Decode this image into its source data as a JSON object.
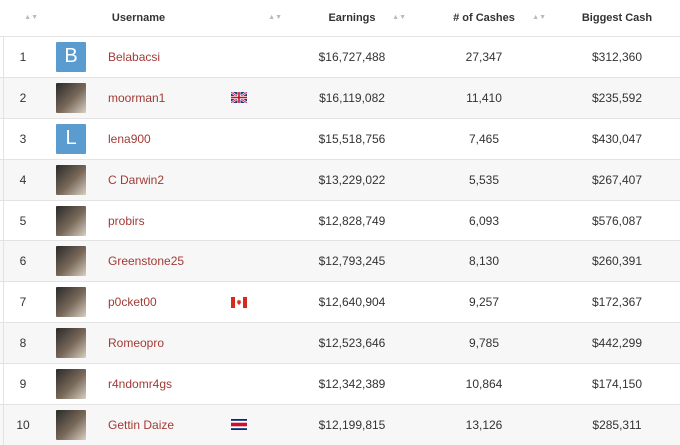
{
  "header": {
    "username": "Username",
    "earnings": "Earnings",
    "cashes": "# of Cashes",
    "biggest": "Biggest Cash",
    "sort_glyph": "▲▼"
  },
  "rows": [
    {
      "rank": "1",
      "name": "Belabacsi",
      "avatar": "letter",
      "letter": "B",
      "flag": "",
      "earnings": "$16,727,488",
      "cashes": "27,347",
      "biggest": "$312,360"
    },
    {
      "rank": "2",
      "name": "moorman1",
      "avatar": "photo",
      "flag": "uk",
      "earnings": "$16,119,082",
      "cashes": "11,410",
      "biggest": "$235,592"
    },
    {
      "rank": "3",
      "name": "lena900",
      "avatar": "letter",
      "letter": "L",
      "flag": "",
      "earnings": "$15,518,756",
      "cashes": "7,465",
      "biggest": "$430,047"
    },
    {
      "rank": "4",
      "name": "C Darwin2",
      "avatar": "photo",
      "flag": "",
      "earnings": "$13,229,022",
      "cashes": "5,535",
      "biggest": "$267,407"
    },
    {
      "rank": "5",
      "name": "probirs",
      "avatar": "photo",
      "flag": "",
      "earnings": "$12,828,749",
      "cashes": "6,093",
      "biggest": "$576,087"
    },
    {
      "rank": "6",
      "name": "Greenstone25",
      "avatar": "photo",
      "flag": "",
      "earnings": "$12,793,245",
      "cashes": "8,130",
      "biggest": "$260,391"
    },
    {
      "rank": "7",
      "name": "p0cket00",
      "avatar": "photo",
      "flag": "ca",
      "earnings": "$12,640,904",
      "cashes": "9,257",
      "biggest": "$172,367"
    },
    {
      "rank": "8",
      "name": "Romeopro",
      "avatar": "photo",
      "flag": "",
      "earnings": "$12,523,646",
      "cashes": "9,785",
      "biggest": "$442,299"
    },
    {
      "rank": "9",
      "name": "r4ndomr4gs",
      "avatar": "photo",
      "flag": "",
      "earnings": "$12,342,389",
      "cashes": "10,864",
      "biggest": "$174,150"
    },
    {
      "rank": "10",
      "name": "Gettin Daize",
      "avatar": "photo",
      "flag": "cr",
      "earnings": "$12,199,815",
      "cashes": "13,126",
      "biggest": "$285,311"
    }
  ],
  "colors": {
    "link": "#a23b36",
    "letter_avatar": "#5a9bd0",
    "alt_row": "#f7f7f7"
  }
}
